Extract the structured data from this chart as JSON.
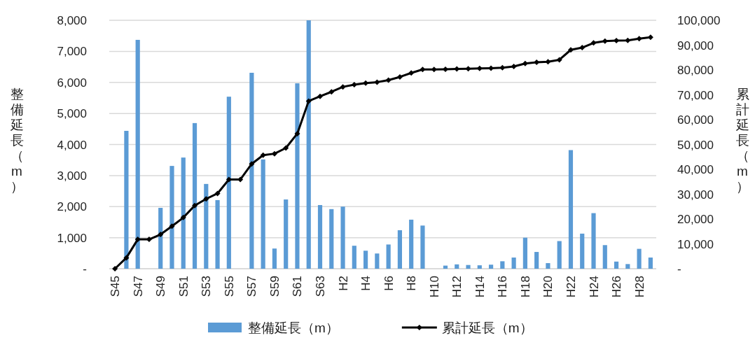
{
  "chart_data": {
    "type": "bar",
    "categories": [
      "S45",
      null,
      "S47",
      null,
      "S49",
      null,
      "S51",
      null,
      "S53",
      null,
      "S55",
      null,
      "S57",
      null,
      "S59",
      null,
      "S61",
      null,
      "S63",
      null,
      "H2",
      null,
      "H4",
      null,
      "H6",
      null,
      "H8",
      null,
      "H10",
      null,
      "H12",
      null,
      "H14",
      null,
      "H16",
      null,
      "H18",
      null,
      "H20",
      null,
      "H22",
      null,
      "H24",
      null,
      "H26",
      null,
      "H28",
      null
    ],
    "series": [
      {
        "name": "整備延長（m）",
        "color": "#5b9bd5",
        "values": [
          0,
          4440,
          7370,
          0,
          1960,
          3310,
          3580,
          4690,
          2730,
          2210,
          5540,
          0,
          6310,
          3520,
          650,
          2230,
          5970,
          8000,
          2050,
          1920,
          2000,
          740,
          580,
          490,
          780,
          1240,
          1580,
          1390,
          0,
          100,
          140,
          120,
          110,
          130,
          240,
          360,
          1000,
          540,
          180,
          890,
          3820,
          1130,
          1790,
          760,
          230,
          150,
          640,
          360
        ]
      },
      {
        "name": "累計延長（m）",
        "type": "line",
        "axis": "y2",
        "color": "#000000",
        "marker": "diamond",
        "line_style": "solid",
        "values": [
          0,
          4400,
          11800,
          11800,
          13800,
          17100,
          20600,
          25400,
          28100,
          30300,
          35900,
          35900,
          42200,
          45700,
          46300,
          48600,
          54400,
          67500,
          69400,
          71200,
          73200,
          74100,
          74700,
          75100,
          75900,
          77200,
          78800,
          80200,
          80200,
          80300,
          80400,
          80500,
          80600,
          80700,
          80900,
          81400,
          82600,
          83100,
          83300,
          84100,
          88100,
          89000,
          90900,
          91600,
          91800,
          91900,
          92600,
          93200
        ]
      }
    ],
    "ylabel": "整備延長（m）",
    "y2label": "累計延長（m）",
    "ylim": [
      0,
      8000
    ],
    "yticks": [
      {
        "value": 0,
        "label": "-"
      },
      {
        "value": 1000,
        "label": "1,000"
      },
      {
        "value": 2000,
        "label": "2,000"
      },
      {
        "value": 3000,
        "label": "3,000"
      },
      {
        "value": 4000,
        "label": "4,000"
      },
      {
        "value": 5000,
        "label": "5,000"
      },
      {
        "value": 6000,
        "label": "6,000"
      },
      {
        "value": 7000,
        "label": "7,000"
      },
      {
        "value": 8000,
        "label": "8,000"
      }
    ],
    "y2lim": [
      0,
      100000
    ],
    "y2ticks": [
      {
        "value": 0,
        "label": "-"
      },
      {
        "value": 10000,
        "label": "10,000"
      },
      {
        "value": 20000,
        "label": "20,000"
      },
      {
        "value": 30000,
        "label": "30,000"
      },
      {
        "value": 40000,
        "label": "40,000"
      },
      {
        "value": 50000,
        "label": "50,000"
      },
      {
        "value": 60000,
        "label": "60,000"
      },
      {
        "value": 70000,
        "label": "70,000"
      },
      {
        "value": 80000,
        "label": "80,000"
      },
      {
        "value": 90000,
        "label": "90,000"
      },
      {
        "value": 100000,
        "label": "100,000"
      }
    ],
    "grid": "y",
    "legend": "bottom"
  }
}
